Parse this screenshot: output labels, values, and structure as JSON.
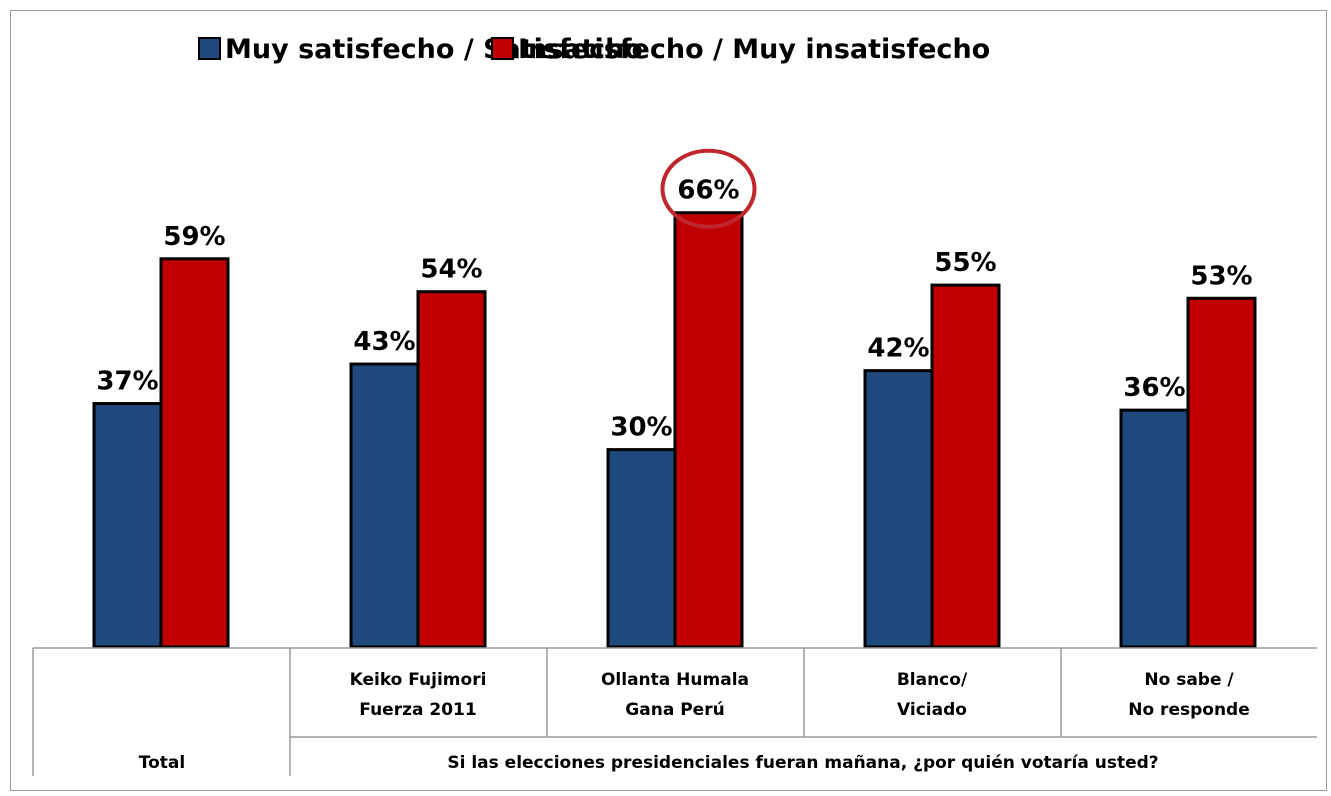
{
  "chart_data": {
    "type": "bar",
    "categories": [
      {
        "lines": [
          "",
          ""
        ]
      },
      {
        "lines": [
          "Keiko Fujimori",
          "Fuerza 2011"
        ]
      },
      {
        "lines": [
          "Ollanta Humala",
          "Gana Perú"
        ]
      },
      {
        "lines": [
          "Blanco/",
          "Viciado"
        ]
      },
      {
        "lines": [
          "No sabe /",
          "No responde"
        ]
      }
    ],
    "groups": [
      {
        "label": "Total"
      },
      {
        "label": "Si las elecciones presidenciales fueran mañana, ¿por quién votaría usted?"
      }
    ],
    "series": [
      {
        "name": "Muy satisfecho / Satisfecho",
        "color": "#1f497d",
        "values": [
          37,
          43,
          30,
          42,
          36
        ],
        "labels": [
          "37%",
          "43%",
          "30%",
          "42%",
          "36%"
        ]
      },
      {
        "name": "Insatisfecho / Muy insatisfecho",
        "color": "#c00000",
        "values": [
          59,
          54,
          66,
          55,
          53
        ],
        "labels": [
          "59%",
          "54%",
          "66%",
          "55%",
          "53%"
        ]
      }
    ],
    "highlight": {
      "series": 1,
      "category": 2,
      "color": "#c0272d"
    },
    "ylim": [
      0,
      100
    ],
    "legend_position": "top",
    "grid": false
  }
}
